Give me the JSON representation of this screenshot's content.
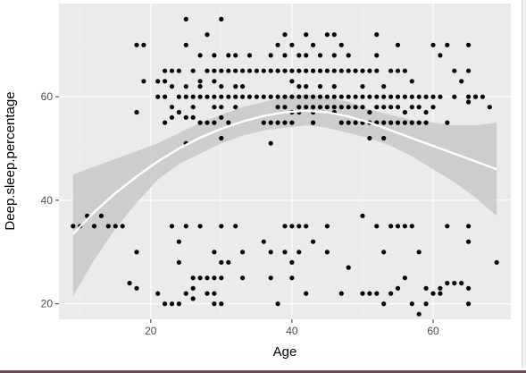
{
  "chart_data": {
    "type": "scatter",
    "title": "",
    "xlabel": "Age",
    "ylabel": "Deep.sleep.percentage",
    "xlim": [
      7,
      71
    ],
    "ylim": [
      17,
      78
    ],
    "xticks": [
      "20",
      "40",
      "60"
    ],
    "xtick_values": [
      20,
      40,
      60
    ],
    "yticks": [
      "20",
      "40",
      "60"
    ],
    "ytick_values": [
      20,
      40,
      60
    ],
    "grid": true,
    "background": "#ebebeb",
    "points": [
      [
        9,
        35
      ],
      [
        10,
        35
      ],
      [
        11,
        37
      ],
      [
        12,
        35
      ],
      [
        13,
        37
      ],
      [
        14,
        35
      ],
      [
        15,
        35
      ],
      [
        16,
        35
      ],
      [
        17,
        24
      ],
      [
        18,
        23
      ],
      [
        18,
        30
      ],
      [
        18,
        57
      ],
      [
        18,
        70
      ],
      [
        19,
        70
      ],
      [
        19,
        63
      ],
      [
        21,
        60
      ],
      [
        21,
        63
      ],
      [
        21,
        22
      ],
      [
        22,
        65
      ],
      [
        22,
        60
      ],
      [
        22,
        55
      ],
      [
        22,
        20
      ],
      [
        22,
        63
      ],
      [
        23,
        65
      ],
      [
        23,
        62
      ],
      [
        23,
        58
      ],
      [
        23,
        56
      ],
      [
        23,
        35
      ],
      [
        23,
        20
      ],
      [
        24,
        65
      ],
      [
        24,
        60
      ],
      [
        24,
        57
      ],
      [
        24,
        32
      ],
      [
        24,
        28
      ],
      [
        24,
        20
      ],
      [
        25,
        75
      ],
      [
        25,
        70
      ],
      [
        25,
        62
      ],
      [
        25,
        60
      ],
      [
        25,
        56
      ],
      [
        25,
        51
      ],
      [
        25,
        35
      ],
      [
        25,
        22
      ],
      [
        26,
        65
      ],
      [
        26,
        60
      ],
      [
        26,
        58
      ],
      [
        26,
        56
      ],
      [
        26,
        25
      ],
      [
        26,
        21
      ],
      [
        26,
        23
      ],
      [
        27,
        68
      ],
      [
        27,
        63
      ],
      [
        27,
        62
      ],
      [
        27,
        60
      ],
      [
        27,
        55
      ],
      [
        27,
        35
      ],
      [
        27,
        25
      ],
      [
        28,
        72
      ],
      [
        28,
        65
      ],
      [
        28,
        60
      ],
      [
        28,
        55
      ],
      [
        28,
        25
      ],
      [
        28,
        22
      ],
      [
        29,
        68
      ],
      [
        29,
        65
      ],
      [
        29,
        63
      ],
      [
        29,
        60
      ],
      [
        29,
        58
      ],
      [
        29,
        55
      ],
      [
        29,
        30
      ],
      [
        29,
        25
      ],
      [
        29,
        22
      ],
      [
        29,
        20
      ],
      [
        30,
        75
      ],
      [
        30,
        65
      ],
      [
        30,
        62
      ],
      [
        30,
        60
      ],
      [
        30,
        58
      ],
      [
        30,
        56
      ],
      [
        30,
        52
      ],
      [
        30,
        35
      ],
      [
        30,
        28
      ],
      [
        30,
        25
      ],
      [
        30,
        20
      ],
      [
        31,
        68
      ],
      [
        31,
        65
      ],
      [
        31,
        60
      ],
      [
        31,
        55
      ],
      [
        31,
        28
      ],
      [
        32,
        68
      ],
      [
        32,
        65
      ],
      [
        32,
        62
      ],
      [
        32,
        60
      ],
      [
        32,
        58
      ],
      [
        32,
        35
      ],
      [
        33,
        65
      ],
      [
        33,
        62
      ],
      [
        33,
        60
      ],
      [
        33,
        30
      ],
      [
        33,
        25
      ],
      [
        34,
        68
      ],
      [
        34,
        65
      ],
      [
        34,
        60
      ],
      [
        35,
        65
      ],
      [
        35,
        60
      ],
      [
        36,
        65
      ],
      [
        36,
        60
      ],
      [
        36,
        55
      ],
      [
        36,
        32
      ],
      [
        37,
        68
      ],
      [
        37,
        65
      ],
      [
        37,
        60
      ],
      [
        37,
        55
      ],
      [
        37,
        51
      ],
      [
        37,
        30
      ],
      [
        37,
        25
      ],
      [
        38,
        70
      ],
      [
        38,
        65
      ],
      [
        38,
        60
      ],
      [
        38,
        58
      ],
      [
        38,
        55
      ],
      [
        38,
        20
      ],
      [
        39,
        72
      ],
      [
        39,
        68
      ],
      [
        39,
        65
      ],
      [
        39,
        60
      ],
      [
        39,
        58
      ],
      [
        39,
        55
      ],
      [
        39,
        35
      ],
      [
        39,
        30
      ],
      [
        40,
        70
      ],
      [
        40,
        65
      ],
      [
        40,
        63
      ],
      [
        40,
        60
      ],
      [
        40,
        57
      ],
      [
        40,
        55
      ],
      [
        40,
        35
      ],
      [
        40,
        28
      ],
      [
        40,
        25
      ],
      [
        41,
        68
      ],
      [
        41,
        65
      ],
      [
        41,
        62
      ],
      [
        41,
        60
      ],
      [
        41,
        58
      ],
      [
        41,
        57
      ],
      [
        41,
        35
      ],
      [
        41,
        30
      ],
      [
        42,
        72
      ],
      [
        42,
        68
      ],
      [
        42,
        65
      ],
      [
        42,
        62
      ],
      [
        42,
        60
      ],
      [
        42,
        58
      ],
      [
        42,
        35
      ],
      [
        42,
        22
      ],
      [
        43,
        70
      ],
      [
        43,
        65
      ],
      [
        43,
        60
      ],
      [
        43,
        58
      ],
      [
        43,
        57
      ],
      [
        43,
        55
      ],
      [
        43,
        32
      ],
      [
        44,
        68
      ],
      [
        44,
        65
      ],
      [
        44,
        62
      ],
      [
        44,
        60
      ],
      [
        44,
        58
      ],
      [
        45,
        72
      ],
      [
        45,
        65
      ],
      [
        45,
        60
      ],
      [
        45,
        58
      ],
      [
        45,
        35
      ],
      [
        45,
        30
      ],
      [
        46,
        72
      ],
      [
        46,
        68
      ],
      [
        46,
        65
      ],
      [
        46,
        62
      ],
      [
        46,
        60
      ],
      [
        46,
        58
      ],
      [
        46,
        57
      ],
      [
        47,
        70
      ],
      [
        47,
        65
      ],
      [
        47,
        60
      ],
      [
        47,
        58
      ],
      [
        47,
        55
      ],
      [
        47,
        22
      ],
      [
        48,
        68
      ],
      [
        48,
        65
      ],
      [
        48,
        60
      ],
      [
        48,
        58
      ],
      [
        48,
        55
      ],
      [
        48,
        27
      ],
      [
        49,
        65
      ],
      [
        49,
        60
      ],
      [
        49,
        58
      ],
      [
        49,
        55
      ],
      [
        50,
        65
      ],
      [
        50,
        62
      ],
      [
        50,
        60
      ],
      [
        50,
        58
      ],
      [
        50,
        55
      ],
      [
        50,
        37
      ],
      [
        50,
        22
      ],
      [
        51,
        65
      ],
      [
        51,
        60
      ],
      [
        51,
        57
      ],
      [
        51,
        55
      ],
      [
        51,
        52
      ],
      [
        51,
        22
      ],
      [
        52,
        72
      ],
      [
        52,
        68
      ],
      [
        52,
        65
      ],
      [
        52,
        60
      ],
      [
        52,
        58
      ],
      [
        52,
        55
      ],
      [
        52,
        35
      ],
      [
        52,
        22
      ],
      [
        53,
        62
      ],
      [
        53,
        60
      ],
      [
        53,
        58
      ],
      [
        53,
        55
      ],
      [
        53,
        52
      ],
      [
        53,
        30
      ],
      [
        53,
        20
      ],
      [
        54,
        65
      ],
      [
        54,
        60
      ],
      [
        54,
        58
      ],
      [
        54,
        55
      ],
      [
        54,
        35
      ],
      [
        54,
        22
      ],
      [
        55,
        70
      ],
      [
        55,
        65
      ],
      [
        55,
        60
      ],
      [
        55,
        58
      ],
      [
        55,
        55
      ],
      [
        55,
        35
      ],
      [
        55,
        23
      ],
      [
        56,
        65
      ],
      [
        56,
        60
      ],
      [
        56,
        57
      ],
      [
        56,
        55
      ],
      [
        56,
        35
      ],
      [
        56,
        25
      ],
      [
        57,
        63
      ],
      [
        57,
        60
      ],
      [
        57,
        58
      ],
      [
        57,
        55
      ],
      [
        57,
        35
      ],
      [
        57,
        20
      ],
      [
        58,
        60
      ],
      [
        58,
        58
      ],
      [
        58,
        55
      ],
      [
        58,
        30
      ],
      [
        58,
        18
      ],
      [
        59,
        60
      ],
      [
        59,
        57
      ],
      [
        59,
        55
      ],
      [
        59,
        20
      ],
      [
        59,
        23
      ],
      [
        60,
        70
      ],
      [
        60,
        60
      ],
      [
        60,
        58
      ],
      [
        60,
        22
      ],
      [
        61,
        68
      ],
      [
        61,
        60
      ],
      [
        61,
        23
      ],
      [
        61,
        22
      ],
      [
        62,
        70
      ],
      [
        62,
        55
      ],
      [
        62,
        35
      ],
      [
        62,
        24
      ],
      [
        63,
        65
      ],
      [
        63,
        60
      ],
      [
        63,
        24
      ],
      [
        64,
        63
      ],
      [
        64,
        24
      ],
      [
        65,
        70
      ],
      [
        65,
        65
      ],
      [
        65,
        60
      ],
      [
        65,
        59
      ],
      [
        65,
        35
      ],
      [
        65,
        32
      ],
      [
        65,
        23
      ],
      [
        65,
        20
      ],
      [
        66,
        60
      ],
      [
        66,
        60
      ],
      [
        67,
        60
      ],
      [
        68,
        58
      ],
      [
        69,
        28
      ]
    ],
    "smooth_line": {
      "x": [
        9,
        12,
        15,
        18,
        21,
        24,
        27,
        30,
        33,
        36,
        39,
        42,
        45,
        48,
        51,
        54,
        57,
        60,
        63,
        66,
        69
      ],
      "y": [
        33.5,
        37.7,
        41.4,
        44.6,
        47.5,
        50.0,
        52.1,
        53.8,
        55.2,
        56.3,
        57.0,
        57.3,
        57.0,
        56.2,
        55.0,
        53.5,
        52.0,
        50.5,
        49.0,
        47.5,
        46.0
      ]
    },
    "confidence_band": {
      "x": [
        9,
        12,
        15,
        18,
        21,
        24,
        27,
        30,
        33,
        36,
        39,
        42,
        45,
        48,
        51,
        54,
        57,
        60,
        63,
        66,
        69
      ],
      "upper": [
        45.0,
        46.5,
        48.0,
        49.5,
        51.0,
        53.0,
        55.0,
        56.5,
        58.0,
        59.0,
        60.0,
        60.5,
        60.0,
        59.0,
        57.5,
        56.5,
        55.5,
        55.0,
        54.5,
        54.5,
        55.0
      ],
      "lower": [
        21.5,
        28.5,
        34.5,
        39.5,
        44.0,
        47.0,
        49.0,
        51.0,
        52.5,
        53.5,
        54.0,
        54.5,
        54.0,
        53.0,
        52.0,
        50.5,
        48.5,
        46.0,
        43.5,
        40.5,
        37.0
      ]
    },
    "colors": {
      "points": "#000000",
      "line": "#ffffff",
      "band": "#c8c8c8",
      "grid_major": "#ffffff",
      "grid_minor": "#f4f4f4",
      "text": "#4d4d4d"
    }
  }
}
